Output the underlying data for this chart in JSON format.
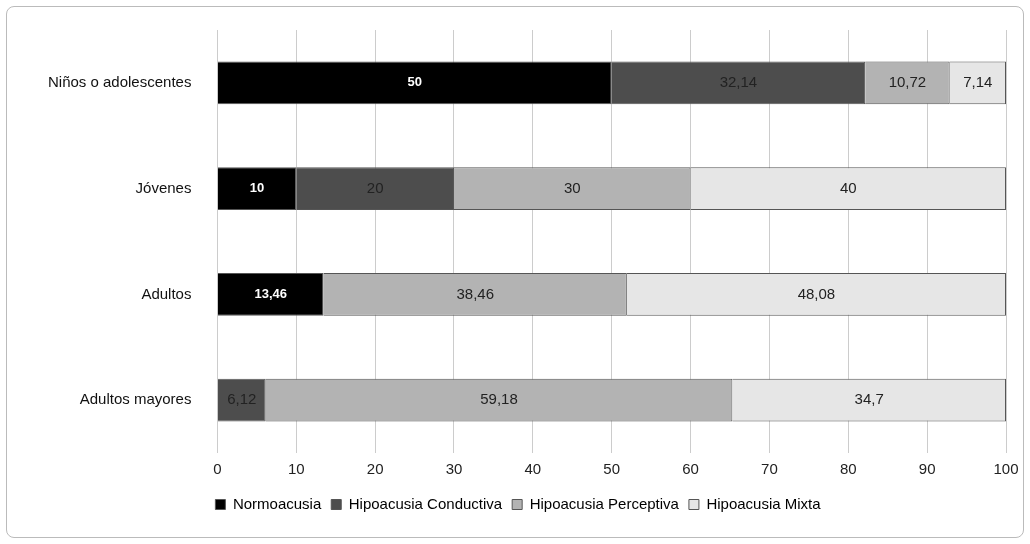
{
  "chart_data": {
    "type": "bar",
    "orientation": "horizontal",
    "stacked": true,
    "categories": [
      "Niños o adolescentes",
      "Jóvenes",
      "Adultos",
      "Adultos mayores"
    ],
    "series": [
      {
        "name": "Normoacusia",
        "color": "#000000",
        "values": [
          50,
          10,
          13.46,
          null
        ],
        "value_labels": [
          "50",
          "10",
          "13,46",
          null
        ]
      },
      {
        "name": "Hipoacusia Conductiva",
        "color": "#4d4d4d",
        "values": [
          32.14,
          20,
          null,
          6.12
        ],
        "value_labels": [
          "32,14",
          "20",
          null,
          "6,12"
        ]
      },
      {
        "name": "Hipoacusia Perceptiva",
        "color": "#b3b3b3",
        "values": [
          10.72,
          30,
          38.46,
          59.18
        ],
        "value_labels": [
          "10,72",
          "30",
          "38,46",
          "59,18"
        ]
      },
      {
        "name": "Hipoacusia Mixta",
        "color": "#e6e6e6",
        "values": [
          7.14,
          40,
          48.08,
          34.7
        ],
        "value_labels": [
          "7,14",
          "40",
          "48,08",
          "34,7"
        ]
      }
    ],
    "xlim": [
      0,
      100
    ],
    "xticks": [
      0,
      10,
      20,
      30,
      40,
      50,
      60,
      70,
      80,
      90,
      100
    ],
    "grid": "x",
    "legend": "bottom"
  }
}
